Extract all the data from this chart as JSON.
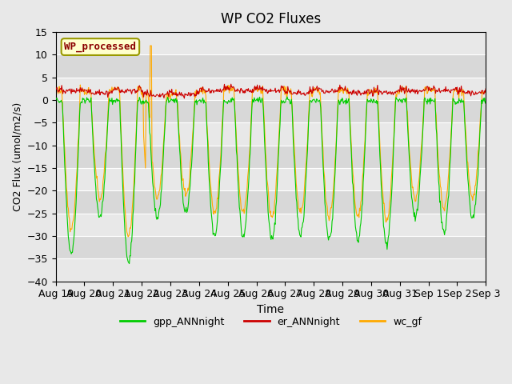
{
  "title": "WP CO2 Fluxes",
  "xlabel": "Time",
  "ylabel": "CO2 Flux (umol/m2/s)",
  "ylim": [
    -40,
    15
  ],
  "background_color": "#e8e8e8",
  "plot_bg_color": "#d8d8d8",
  "stripe_color": "#e8e8e8",
  "gpp_color": "#00cc00",
  "er_color": "#cc0000",
  "wc_color": "#ffaa00",
  "legend_box_text": "WP_processed",
  "legend_box_facecolor": "#ffffcc",
  "legend_box_edgecolor": "#999900",
  "legend_box_textcolor": "#8b0000",
  "xtick_labels": [
    "Aug 19",
    "Aug 20",
    "Aug 21",
    "Aug 22",
    "Aug 23",
    "Aug 24",
    "Aug 25",
    "Aug 26",
    "Aug 27",
    "Aug 28",
    "Aug 29",
    "Aug 30",
    "Aug 31",
    "Sep 1",
    "Sep 2",
    "Sep 3"
  ],
  "num_days": 15,
  "points_per_day": 48
}
